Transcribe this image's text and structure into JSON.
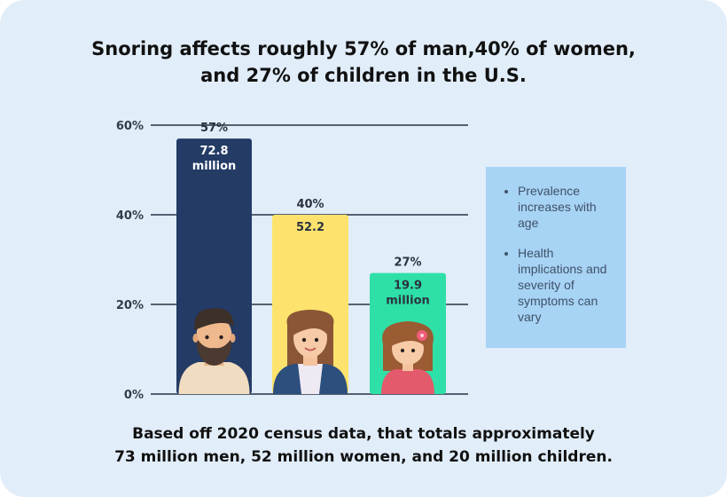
{
  "title": {
    "line1": "Snoring affects roughly 57% of man,40% of women,",
    "line2": "and 27% of children in the U.S."
  },
  "footer": {
    "line1": "Based off 2020 census data, that totals approximately",
    "line2": "73 million men, 52 million women, and 20 million children."
  },
  "side_notes": [
    "Prevalence increases with age",
    "Health implications and severity of symptoms can vary"
  ],
  "colors": {
    "background": "#e1edf9",
    "men": "#233b65",
    "women": "#fde36d",
    "children": "#2ee0a7",
    "note_box": "#a7d3f5",
    "grid": "#273346"
  },
  "chart_data": {
    "type": "bar",
    "title": "Snoring affects roughly 57% of man,40% of women, and 27% of children in the U.S.",
    "categories": [
      "Men",
      "Women",
      "Children"
    ],
    "values": [
      57,
      40,
      27
    ],
    "value_labels": [
      "57%",
      "40%",
      "27%"
    ],
    "population_labels": [
      "72.8\nmillion",
      "52.2",
      "19.9\nmillion"
    ],
    "population_millions": [
      72.8,
      52.2,
      19.9
    ],
    "icons": [
      "man-avatar-icon",
      "woman-avatar-icon",
      "girl-avatar-icon"
    ],
    "ylim": [
      0,
      60
    ],
    "yticks": [
      0,
      20,
      40,
      60
    ],
    "ytick_labels": [
      "0%",
      "20%",
      "40%",
      "60%"
    ],
    "xlabel": "",
    "ylabel": "",
    "grid": true
  }
}
